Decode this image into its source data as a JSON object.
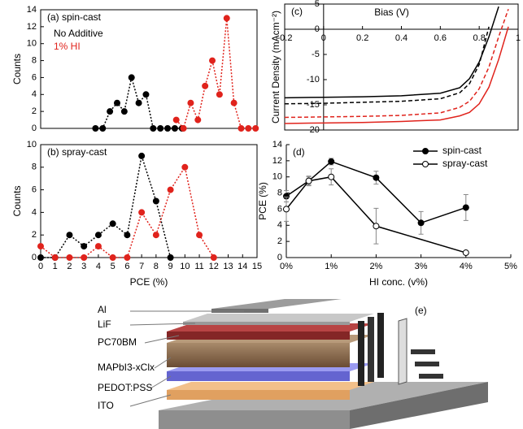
{
  "chart_data": [
    {
      "type": "line",
      "title": "(a) spin-cast",
      "y_label": "Counts",
      "xlim": [
        0,
        15
      ],
      "ylim": [
        0,
        14
      ],
      "yticks": [
        0,
        2,
        4,
        6,
        8,
        10,
        12,
        14
      ],
      "frame": "box",
      "legend": "upper left",
      "legend_style": "text",
      "series": [
        {
          "name": "No Additive",
          "color": "#000000",
          "dash": "dotted",
          "marker": true,
          "x": [
            3.8,
            4.3,
            4.8,
            5.3,
            5.8,
            6.3,
            6.8,
            7.3,
            7.8,
            8.3,
            8.8,
            9.3,
            9.8
          ],
          "values": [
            0,
            0,
            2,
            3,
            2,
            6,
            3,
            4,
            0,
            0,
            0,
            0,
            0
          ]
        },
        {
          "name": "1% HI",
          "color": "#e0231c",
          "dash": "dotted",
          "marker": true,
          "x": [
            9.4,
            9.9,
            10.4,
            10.9,
            11.4,
            11.9,
            12.4,
            12.9,
            13.4,
            13.9,
            14.4,
            14.9
          ],
          "values": [
            1,
            0,
            3,
            1,
            5,
            8,
            4,
            13,
            3,
            0,
            0,
            0
          ]
        }
      ]
    },
    {
      "type": "line",
      "title": "(b) spray-cast",
      "x_label": "PCE (%)",
      "y_label": "Counts",
      "xlim": [
        0,
        15
      ],
      "ylim": [
        0,
        10
      ],
      "xticks": [
        0,
        1,
        2,
        3,
        4,
        5,
        6,
        7,
        8,
        9,
        10,
        11,
        12,
        13,
        14,
        15
      ],
      "yticks": [
        0,
        2,
        4,
        6,
        8,
        10
      ],
      "frame": "box",
      "series": [
        {
          "color": "#000000",
          "dash": "dotted",
          "marker": true,
          "x": [
            0,
            1,
            2,
            3,
            4,
            5,
            6,
            7,
            8,
            9
          ],
          "values": [
            0,
            0,
            2,
            1,
            2,
            3,
            2,
            9,
            5,
            0
          ]
        },
        {
          "color": "#e0231c",
          "dash": "dotted",
          "marker": true,
          "x": [
            0,
            1,
            2,
            3,
            4,
            5,
            6,
            7,
            8,
            9,
            10,
            11,
            12
          ],
          "values": [
            1,
            0,
            0,
            0,
            1,
            0,
            0,
            4,
            2,
            6,
            8,
            2,
            0
          ]
        }
      ]
    },
    {
      "type": "line",
      "title": "(c)",
      "x_label": "Bias (V)",
      "y_label": "Current Density (mAcm⁻²)",
      "xlim": [
        -0.2,
        1
      ],
      "ylim": [
        -20,
        5
      ],
      "xticks": [
        -0.2,
        0,
        0.2,
        0.4,
        0.6,
        0.8,
        1
      ],
      "yticks": [
        5,
        0,
        -5,
        -10,
        -15,
        -20
      ],
      "frame": "box",
      "axes_at_origin": true,
      "x": [
        -0.2,
        0,
        0.2,
        0.4,
        0.6,
        0.7,
        0.75,
        0.8,
        0.85,
        0.9,
        0.95,
        1
      ],
      "series": [
        {
          "color": "#000000",
          "dash": "solid",
          "values": [
            -13.6,
            -13.5,
            -13.4,
            -13.2,
            -12.7,
            -11.6,
            -9.8,
            -6.5,
            -1.5,
            4.5,
            null,
            null
          ]
        },
        {
          "color": "#000000",
          "dash": "dashed",
          "values": [
            -14.8,
            -14.7,
            -14.5,
            -14.3,
            -13.8,
            -12.6,
            -10.8,
            -7,
            0.5,
            null,
            null,
            null
          ]
        },
        {
          "color": "#e0231c",
          "dash": "dashed",
          "values": [
            -17.5,
            -17.4,
            -17.3,
            -17.1,
            -16.6,
            -15.5,
            -14.3,
            -11.8,
            -7.5,
            -1.5,
            4,
            null
          ]
        },
        {
          "color": "#e0231c",
          "dash": "solid",
          "values": [
            -18.7,
            -18.6,
            -18.5,
            -18.3,
            -18,
            -17.2,
            -16.5,
            -14.8,
            -11.5,
            -6,
            0.5,
            null
          ]
        }
      ]
    },
    {
      "type": "line",
      "title": "(d)",
      "x_label": "HI conc. (v%)",
      "y_label": "PCE (%)",
      "xlim": [
        0,
        5
      ],
      "ylim": [
        0,
        14
      ],
      "frame": "axes",
      "legend": "upper right",
      "legend_style": "symbol",
      "xticks": [
        {
          "value": 0,
          "label": "0%"
        },
        {
          "value": 1,
          "label": "1%"
        },
        {
          "value": 2,
          "label": "2%"
        },
        {
          "value": 3,
          "label": "3%"
        },
        {
          "value": 4,
          "label": "4%"
        },
        {
          "value": 5,
          "label": "5%"
        }
      ],
      "yticks": [
        0,
        2,
        4,
        6,
        8,
        10,
        12,
        14
      ],
      "series": [
        {
          "name": "spin-cast",
          "color": "#000000",
          "dash": "solid",
          "marker": true,
          "marker_fill": "#000000",
          "x": [
            0,
            0.5,
            1,
            2,
            3,
            4
          ],
          "values": [
            7.6,
            9.5,
            11.9,
            9.9,
            4.3,
            6.2
          ],
          "errors": [
            0.7,
            0.5,
            0.4,
            0.8,
            1.4,
            1.6
          ]
        },
        {
          "name": "spray-cast",
          "color": "#000000",
          "dash": "solid",
          "marker": true,
          "marker_fill": "#ffffff",
          "x": [
            0,
            0.5,
            1,
            2,
            4
          ],
          "values": [
            6.0,
            9.5,
            10.0,
            3.9,
            0.6
          ],
          "errors": [
            1.5,
            0.6,
            1.0,
            2.2,
            0.2
          ]
        }
      ]
    }
  ],
  "diagram": {
    "label": "(e)",
    "layers": [
      "Al",
      "LiF",
      "PC70BM",
      "MAPbI3-xClx",
      "PEDOT:PSS",
      "ITO"
    ]
  }
}
